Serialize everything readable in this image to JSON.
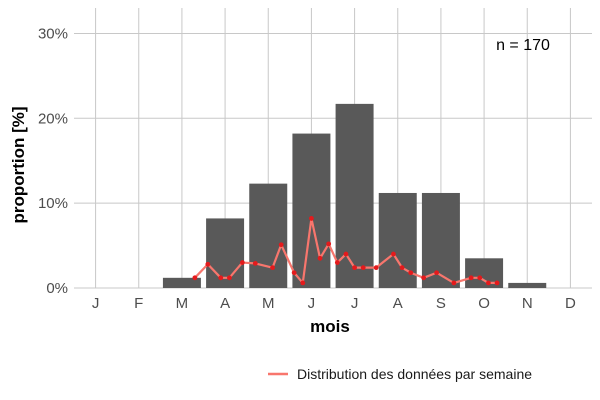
{
  "chart_data": {
    "type": "bar",
    "title": "",
    "xlabel": "mois",
    "ylabel": "proportion [%]",
    "categories": [
      "J",
      "F",
      "M",
      "A",
      "M",
      "J",
      "J",
      "A",
      "S",
      "O",
      "N",
      "D"
    ],
    "values": [
      0,
      0,
      1.2,
      8.2,
      12.3,
      18.2,
      21.7,
      11.2,
      11.2,
      3.5,
      0.6,
      0
    ],
    "ylim": [
      0,
      33
    ],
    "yticks": [
      0,
      10,
      20,
      30
    ],
    "ytick_labels": [
      "0%",
      "10%",
      "20%",
      "30%"
    ],
    "grid": true,
    "annotation": "n = 170",
    "legend": {
      "position": "bottom-right",
      "entries": [
        "Distribution des données par semaine"
      ]
    },
    "series": [
      {
        "name": "Distribution des données par semaine",
        "type": "line",
        "x": [
          3.3,
          3.6,
          3.9,
          4.1,
          4.4,
          4.7,
          5.1,
          5.3,
          5.6,
          5.8,
          6.0,
          6.2,
          6.4,
          6.6,
          6.8,
          7.0,
          7.2,
          7.5,
          7.9,
          8.1,
          8.3,
          8.6,
          8.9,
          9.3,
          9.7,
          9.9,
          10.1,
          10.3
        ],
        "values": [
          1.2,
          2.8,
          1.2,
          1.2,
          3.0,
          2.9,
          2.4,
          5.1,
          1.8,
          0.6,
          8.2,
          3.5,
          5.2,
          3.0,
          4.0,
          2.4,
          2.4,
          2.4,
          4.0,
          2.4,
          1.8,
          1.2,
          1.8,
          0.6,
          1.2,
          1.2,
          0.6,
          0.6
        ]
      }
    ],
    "colors": {
      "bars": "#595959",
      "line": "#f8766d",
      "points": "#e41a1c",
      "grid": "#c8c8c8"
    }
  }
}
